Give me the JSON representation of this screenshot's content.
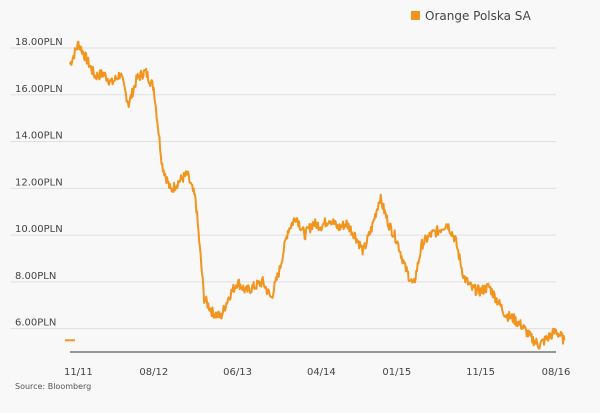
{
  "chart_data": {
    "type": "line",
    "legend": {
      "position": "top-right"
    },
    "source": "Source: Bloomberg",
    "colors": {
      "series": "#f2951f",
      "grid": "#e0e0e0",
      "axis": "#333333",
      "background": "#f8f8f8"
    },
    "ylim": [
      5.0,
      18.6
    ],
    "yticks": [
      {
        "value": 18,
        "label": "18.00PLN"
      },
      {
        "value": 16,
        "label": "16.00PLN"
      },
      {
        "value": 14,
        "label": "14.00PLN"
      },
      {
        "value": 12,
        "label": "12.00PLN"
      },
      {
        "value": 10,
        "label": "10.00PLN"
      },
      {
        "value": 8,
        "label": "8.00PLN"
      },
      {
        "value": 6,
        "label": "6.00PLN"
      }
    ],
    "xlim": [
      "2011-10",
      "2016-08"
    ],
    "xticks": [
      {
        "value": "2011-11",
        "label": "11/11"
      },
      {
        "value": "2012-08",
        "label": "08/12"
      },
      {
        "value": "2013-06",
        "label": "06/13"
      },
      {
        "value": "2014-04",
        "label": "04/14"
      },
      {
        "value": "2015-01",
        "label": "01/15"
      },
      {
        "value": "2015-11",
        "label": "11/15"
      },
      {
        "value": "2016-08",
        "label": "08/16"
      }
    ],
    "grid": "horizontal",
    "series": [
      {
        "name": "Orange Polska SA",
        "color": "#f2951f",
        "points": [
          [
            "2011-10",
            17.3
          ],
          [
            "2011-11",
            18.2
          ],
          [
            "2011-12",
            17.5
          ],
          [
            "2012-01",
            16.8
          ],
          [
            "2012-02",
            16.9
          ],
          [
            "2012-03",
            16.5
          ],
          [
            "2012-04",
            16.9
          ],
          [
            "2012-05",
            15.6
          ],
          [
            "2012-06",
            16.7
          ],
          [
            "2012-07",
            17.0
          ],
          [
            "2012-08",
            16.3
          ],
          [
            "2012-09",
            13.0
          ],
          [
            "2012-10",
            11.9
          ],
          [
            "2012-11",
            12.3
          ],
          [
            "2012-12",
            12.6
          ],
          [
            "2013-01",
            11.5
          ],
          [
            "2013-02",
            7.3
          ],
          [
            "2013-03",
            6.7
          ],
          [
            "2013-04",
            6.5
          ],
          [
            "2013-05",
            7.4
          ],
          [
            "2013-06",
            8.0
          ],
          [
            "2013-07",
            7.6
          ],
          [
            "2013-08",
            7.8
          ],
          [
            "2013-09",
            8.0
          ],
          [
            "2013-10",
            7.3
          ],
          [
            "2013-11",
            8.5
          ],
          [
            "2013-12",
            10.2
          ],
          [
            "2014-01",
            10.8
          ],
          [
            "2014-02",
            10.0
          ],
          [
            "2014-03",
            10.5
          ],
          [
            "2014-04",
            10.4
          ],
          [
            "2014-05",
            10.7
          ],
          [
            "2014-06",
            10.3
          ],
          [
            "2014-07",
            10.5
          ],
          [
            "2014-08",
            10.0
          ],
          [
            "2014-09",
            9.3
          ],
          [
            "2014-10",
            10.3
          ],
          [
            "2014-11",
            11.6
          ],
          [
            "2014-12",
            10.5
          ],
          [
            "2015-01",
            9.8
          ],
          [
            "2015-02",
            8.6
          ],
          [
            "2015-03",
            7.8
          ],
          [
            "2015-04",
            9.6
          ],
          [
            "2015-05",
            10.0
          ],
          [
            "2015-06",
            10.2
          ],
          [
            "2015-07",
            10.5
          ],
          [
            "2015-08",
            9.8
          ],
          [
            "2015-09",
            8.2
          ],
          [
            "2015-10",
            7.7
          ],
          [
            "2015-11",
            7.6
          ],
          [
            "2015-12",
            7.8
          ],
          [
            "2016-01",
            7.2
          ],
          [
            "2016-02",
            6.6
          ],
          [
            "2016-03",
            6.4
          ],
          [
            "2016-04",
            6.1
          ],
          [
            "2016-05",
            5.6
          ],
          [
            "2016-06",
            5.3
          ],
          [
            "2016-07",
            5.6
          ],
          [
            "2016-08",
            5.9
          ],
          [
            "2016-09",
            5.5
          ]
        ]
      }
    ]
  }
}
